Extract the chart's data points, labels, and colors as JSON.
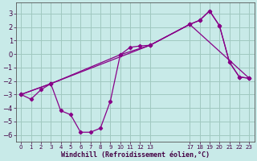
{
  "xlabel": "Windchill (Refroidissement éolien,°C)",
  "bg_color": "#c8eae8",
  "grid_color": "#a0c8c0",
  "line_color": "#880088",
  "xtick_labels": [
    "0",
    "1",
    "2",
    "3",
    "4",
    "5",
    "6",
    "7",
    "8",
    "9",
    "10",
    "11",
    "12",
    "13",
    "17",
    "18",
    "19",
    "20",
    "21",
    "22",
    "23"
  ],
  "xtick_positions": [
    0,
    1,
    2,
    3,
    4,
    5,
    6,
    7,
    8,
    9,
    10,
    11,
    12,
    13,
    17,
    18,
    19,
    20,
    21,
    22,
    23
  ],
  "ylim": [
    -6.5,
    3.8
  ],
  "yticks": [
    -6,
    -5,
    -4,
    -3,
    -2,
    -1,
    0,
    1,
    2,
    3
  ],
  "line1_x": [
    0,
    1,
    2,
    3,
    4,
    5,
    6,
    7,
    8,
    9,
    10,
    11,
    12,
    13,
    17,
    18,
    19,
    20,
    21,
    22,
    23
  ],
  "line1_y": [
    -3.0,
    -3.35,
    -2.65,
    -2.2,
    -4.2,
    -4.5,
    -5.8,
    -5.8,
    -5.5,
    -3.5,
    -0.05,
    0.5,
    0.6,
    0.65,
    2.2,
    2.5,
    3.2,
    2.1,
    -0.6,
    -1.7,
    -1.8
  ],
  "line2_x": [
    0,
    3,
    10,
    13,
    17,
    18,
    19,
    20,
    21,
    22,
    23
  ],
  "line2_y": [
    -3.0,
    -2.2,
    -0.05,
    0.65,
    2.2,
    2.5,
    3.2,
    2.1,
    -0.6,
    -1.7,
    -1.8
  ],
  "line3_x": [
    0,
    3,
    13,
    17,
    23
  ],
  "line3_y": [
    -3.0,
    -2.2,
    0.65,
    2.2,
    -1.8
  ],
  "xlim": [
    -0.5,
    23.5
  ],
  "xlabel_fontsize": 6,
  "ytick_fontsize": 6,
  "xtick_fontsize": 5
}
